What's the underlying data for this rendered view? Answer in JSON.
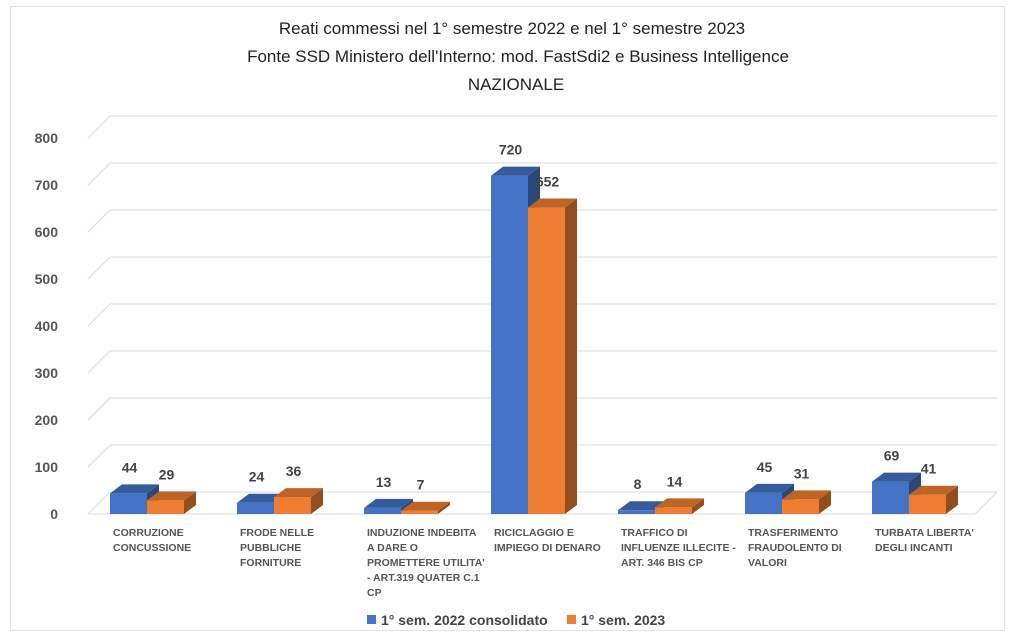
{
  "chart_data": {
    "type": "bar",
    "title": [
      "Reati commessi nel 1° semestre 2022 e nel 1° semestre 2023",
      "Fonte SSD Ministero dell'Interno: mod. FastSdi2 e Business Intelligence",
      "NAZIONALE"
    ],
    "categories": [
      [
        "CORRUZIONE",
        "CONCUSSIONE"
      ],
      [
        "FRODE NELLE",
        "PUBBLICHE",
        "FORNITURE"
      ],
      [
        "INDUZIONE INDEBITA",
        "A DARE O",
        "PROMETTERE UTILITA'",
        "- ART.319 QUATER C.1",
        "CP"
      ],
      [
        "RICICLAGGIO E",
        "IMPIEGO DI DENARO"
      ],
      [
        "TRAFFICO DI",
        "INFLUENZE ILLECITE -",
        "ART. 346 BIS CP"
      ],
      [
        "TRASFERIMENTO",
        "FRAUDOLENTO DI",
        "VALORI"
      ],
      [
        "TURBATA LIBERTA'",
        "DEGLI INCANTI"
      ]
    ],
    "series": [
      {
        "name": "1° sem. 2022 consolidato",
        "values": [
          44,
          24,
          13,
          720,
          8,
          45,
          69
        ],
        "color": "#4472C4"
      },
      {
        "name": "1° sem. 2023",
        "values": [
          29,
          36,
          7,
          652,
          14,
          31,
          41
        ],
        "color": "#ED7D31"
      }
    ],
    "ylim": [
      0,
      800
    ],
    "yticks": [
      "0",
      "100",
      "200",
      "300",
      "400",
      "500",
      "600",
      "700",
      "800"
    ],
    "grid": true,
    "legend": "bottom",
    "style": "3d-clustered-column"
  }
}
